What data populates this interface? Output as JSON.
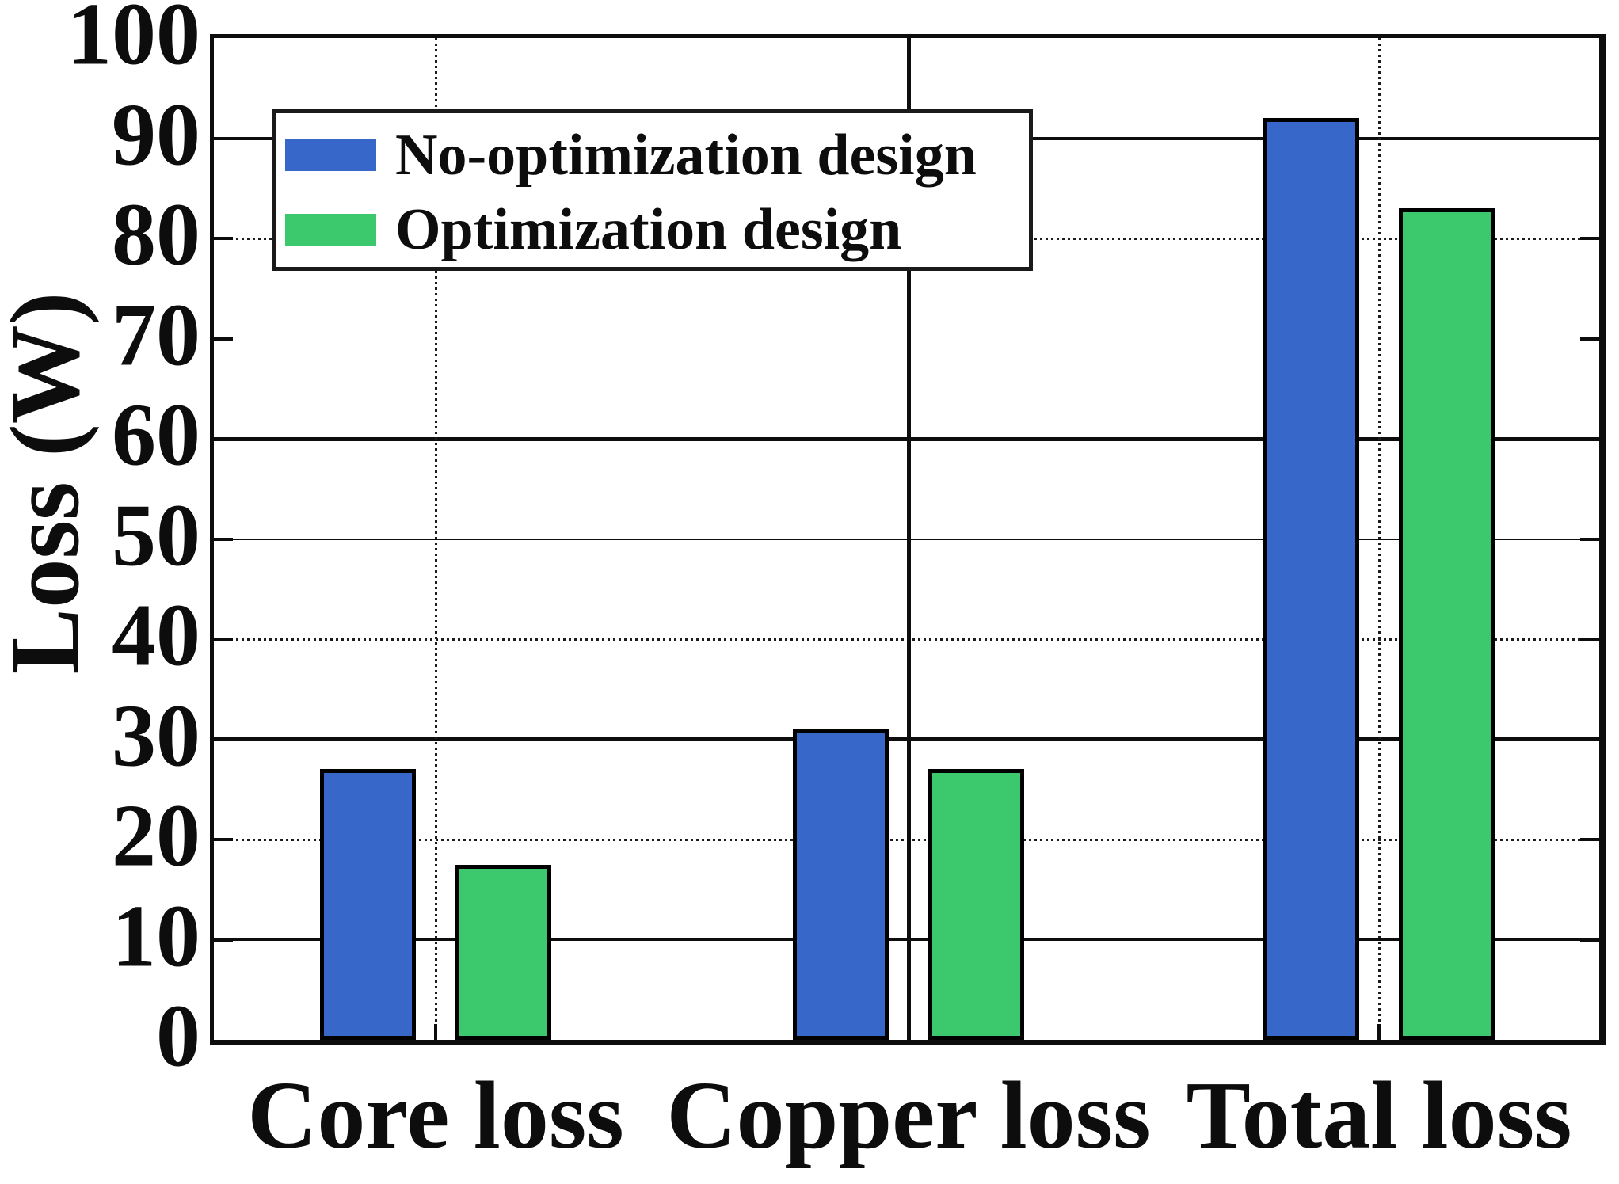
{
  "chart_data": {
    "type": "bar",
    "title": "",
    "xlabel": "",
    "ylabel": "Loss (W)",
    "categories": [
      "Core loss",
      "Copper loss",
      "Total loss"
    ],
    "series": [
      {
        "name": "No-optimization design",
        "color": "#3768C9",
        "values": [
          27,
          31,
          92
        ]
      },
      {
        "name": "Optimization design",
        "color": "#3CC96D",
        "values": [
          17.5,
          27,
          83
        ]
      }
    ],
    "ylim": [
      0,
      100
    ],
    "yticks": [
      0,
      10,
      20,
      30,
      40,
      50,
      60,
      70,
      80,
      90,
      100
    ],
    "legend_position": "upper-left-inside",
    "grid_on": true,
    "bar_edge_color": "#000000",
    "axis_color": "#0d0d0d",
    "grid_styles": {
      "horizontal": {
        "90": "solid-4",
        "80": "dotted-3",
        "70": "none",
        "60": "solid-5",
        "50": "solid-2",
        "40": "dotted-3",
        "30": "solid-5",
        "20": "dotted-3",
        "10": "solid-3"
      },
      "vertical_per_category": [
        "dotted-3",
        "solid-5",
        "dotted-3"
      ]
    }
  }
}
